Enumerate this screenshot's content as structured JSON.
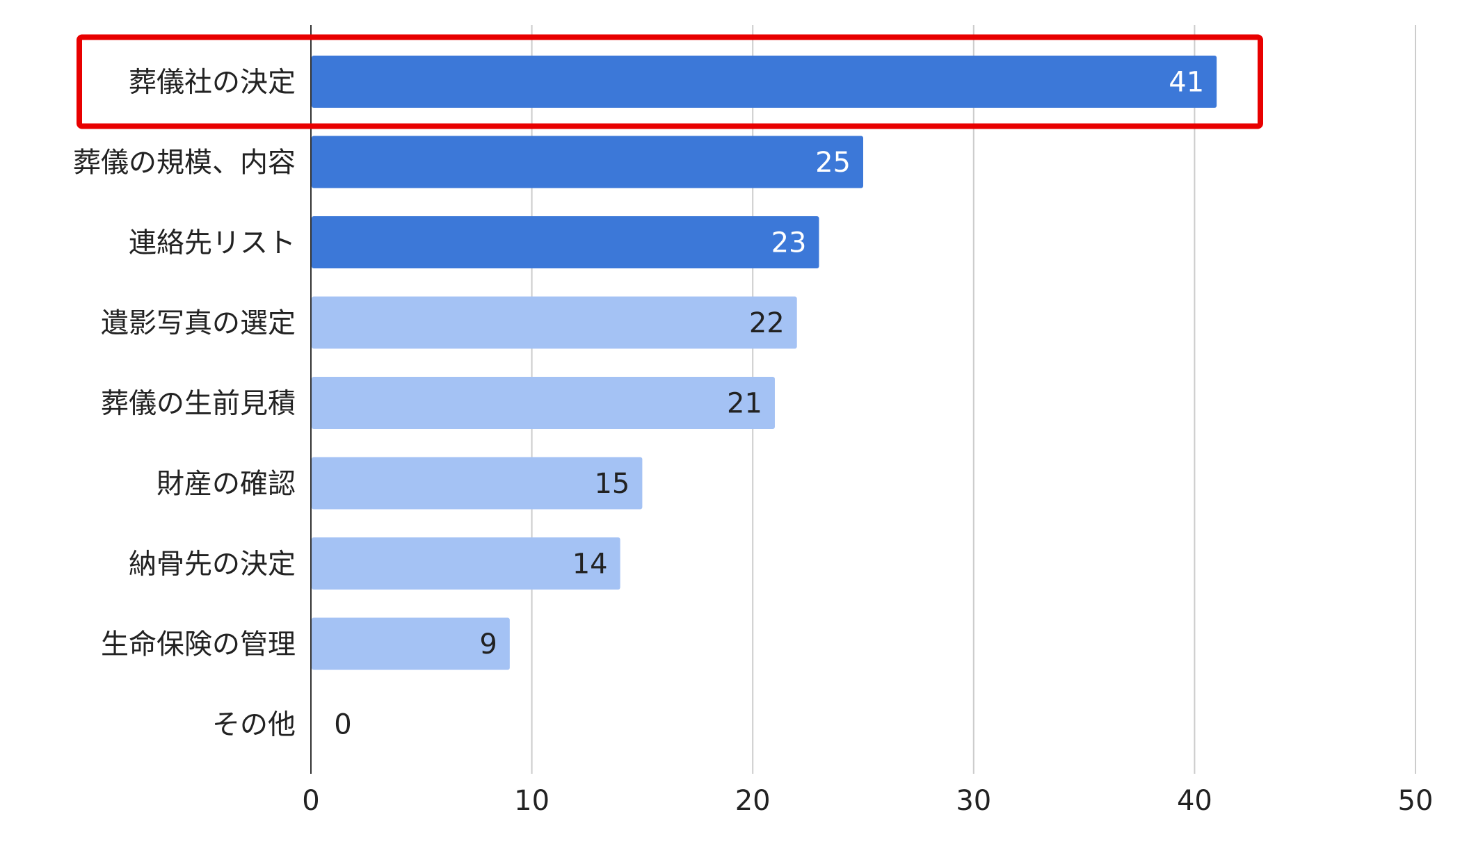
{
  "chart_data": {
    "type": "bar",
    "orientation": "horizontal",
    "categories": [
      "葬儀社の決定",
      "葬儀の規模、内容",
      "連絡先リスト",
      "遺影写真の選定",
      "葬儀の生前見積",
      "財産の確認",
      "納骨先の決定",
      "生命保険の管理",
      "その他"
    ],
    "values": [
      41,
      25,
      23,
      22,
      21,
      15,
      14,
      9,
      0
    ],
    "emphasis": [
      true,
      true,
      true,
      false,
      false,
      false,
      false,
      false,
      false
    ],
    "highlighted_category": "葬儀社の決定",
    "xlim": [
      0,
      50
    ],
    "xticks": [
      "0",
      "10",
      "20",
      "30",
      "40",
      "50"
    ],
    "grid": true,
    "legend": "none",
    "colors": {
      "emphasis_bar": "#3c78d8",
      "normal_bar": "#a4c2f4",
      "emphasis_label": "#ffffff",
      "normal_label": "#222222",
      "highlight_box": "#e80000",
      "gridline": "#cccccc"
    }
  }
}
